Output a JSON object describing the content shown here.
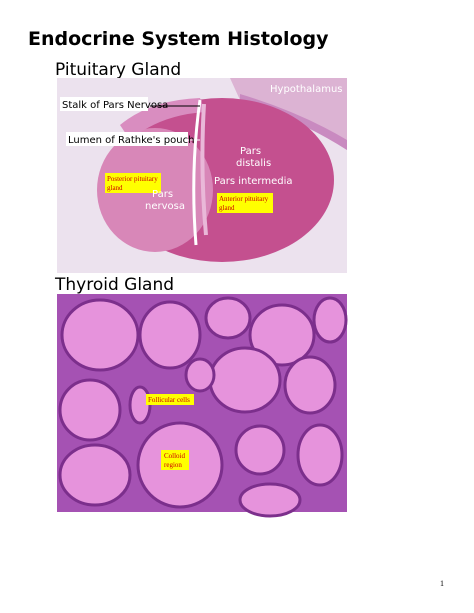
{
  "title": "Endocrine System Histology",
  "sections": [
    {
      "heading": "Pituitary Gland",
      "labels": [
        {
          "lines": [
            "Hypothalamus"
          ]
        },
        {
          "lines": [
            "Stalk of Pars Nervosa"
          ]
        },
        {
          "lines": [
            "Lumen of Rathke's pouch"
          ]
        },
        {
          "lines": [
            "Pars",
            "distalis"
          ]
        },
        {
          "lines": [
            "Pars intermedia"
          ]
        },
        {
          "lines": [
            "Posterior pituitary",
            "gland"
          ]
        },
        {
          "lines": [
            "Pars",
            "nervosa"
          ]
        },
        {
          "lines": [
            "Anterior pituitary",
            "gland"
          ]
        }
      ]
    },
    {
      "heading": "Thyroid Gland",
      "labels": [
        {
          "lines": [
            "Follicular cells"
          ]
        },
        {
          "lines": [
            "Colloid",
            "region"
          ]
        }
      ]
    }
  ],
  "page_number": "1"
}
